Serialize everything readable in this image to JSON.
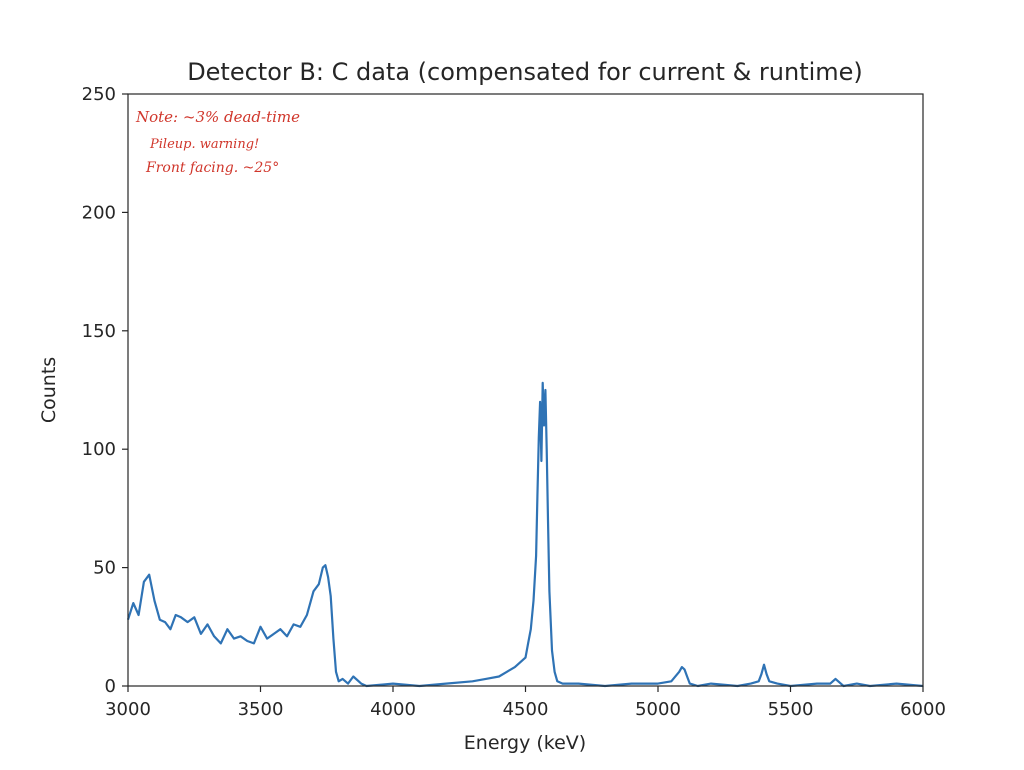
{
  "chart_data": {
    "type": "line",
    "title": "Detector B: C data (compensated for current & runtime)",
    "xlabel": "Energy (keV)",
    "ylabel": "Counts",
    "xlim": [
      3000,
      6000
    ],
    "ylim": [
      0,
      250
    ],
    "xticks": [
      "3000",
      "3500",
      "4000",
      "4500",
      "5000",
      "5500",
      "6000"
    ],
    "yticks": [
      "0",
      "50",
      "100",
      "150",
      "200",
      "250"
    ],
    "grid": false,
    "line_color": "#2f73b5",
    "annotation": {
      "type": "handwritten",
      "color": "#d0362b",
      "lines": [
        "Note: ~3% dead-time",
        "Pileup. warning!",
        "Front facing. ~25°"
      ]
    },
    "series": [
      {
        "x": [
          3000,
          3020,
          3040,
          3060,
          3080,
          3100,
          3120,
          3140,
          3160,
          3180,
          3200,
          3225,
          3250,
          3275,
          3300,
          3325,
          3350,
          3375,
          3400,
          3425,
          3450,
          3475,
          3500,
          3525,
          3550,
          3575,
          3600,
          3625,
          3650,
          3675,
          3700,
          3720,
          3735,
          3745,
          3755,
          3765,
          3775,
          3785,
          3795,
          3810,
          3830,
          3850,
          3880,
          3900,
          4000,
          4100,
          4200,
          4300,
          4350,
          4400,
          4430,
          4460,
          4480,
          4500,
          4510,
          4520,
          4530,
          4540,
          4545,
          4550,
          4555,
          4560,
          4565,
          4570,
          4575,
          4580,
          4585,
          4590,
          4600,
          4610,
          4620,
          4640,
          4700,
          4800,
          4900,
          5000,
          5050,
          5080,
          5090,
          5100,
          5110,
          5120,
          5150,
          5200,
          5300,
          5350,
          5380,
          5390,
          5400,
          5410,
          5420,
          5450,
          5500,
          5600,
          5650,
          5670,
          5680,
          5690,
          5700,
          5750,
          5800,
          5900,
          6000
        ],
        "values": [
          28,
          35,
          30,
          44,
          47,
          36,
          28,
          27,
          24,
          30,
          29,
          27,
          29,
          22,
          26,
          21,
          18,
          24,
          20,
          21,
          19,
          18,
          25,
          20,
          22,
          24,
          21,
          26,
          25,
          30,
          40,
          43,
          50,
          51,
          46,
          38,
          20,
          6,
          2,
          3,
          1,
          4,
          1,
          0,
          1,
          0,
          1,
          2,
          3,
          4,
          6,
          8,
          10,
          12,
          18,
          24,
          36,
          55,
          80,
          105,
          120,
          95,
          128,
          110,
          125,
          100,
          70,
          40,
          15,
          6,
          2,
          1,
          1,
          0,
          1,
          1,
          2,
          6,
          8,
          7,
          4,
          1,
          0,
          1,
          0,
          1,
          2,
          5,
          9,
          5,
          2,
          1,
          0,
          1,
          1,
          3,
          2,
          1,
          0,
          1,
          0,
          1,
          0
        ]
      }
    ]
  }
}
